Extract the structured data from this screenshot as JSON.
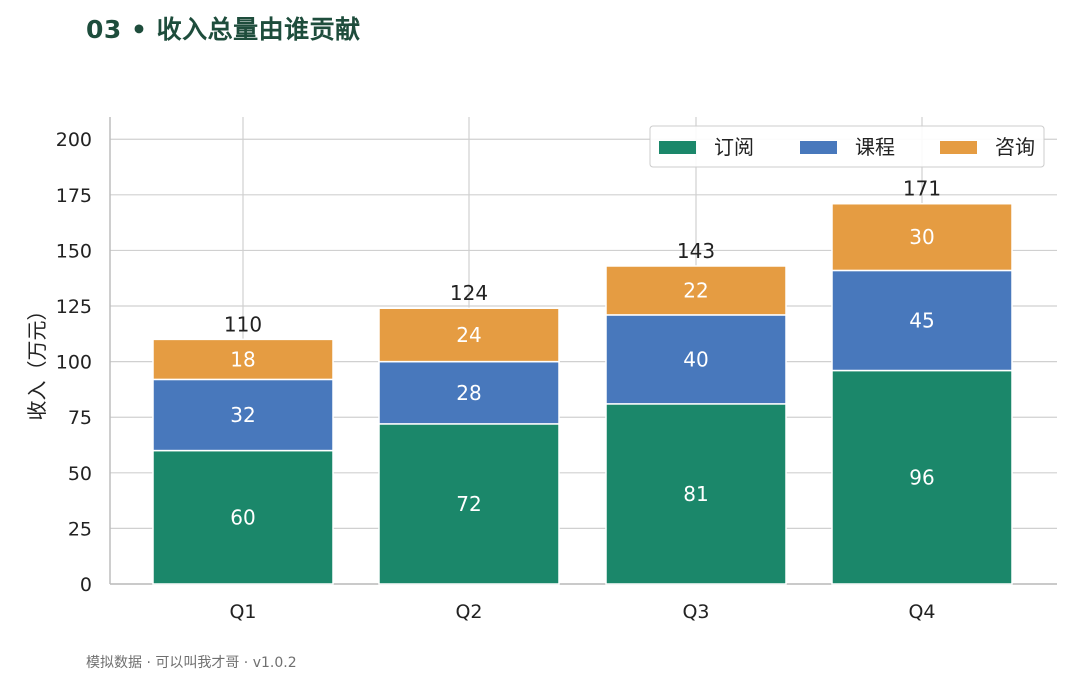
{
  "header": {
    "title": "03 • 收入总量由谁贡献"
  },
  "footer": {
    "note": "模拟数据 · 可以叫我才哥 · v1.0.2"
  },
  "chart_data": {
    "type": "bar",
    "stacked": true,
    "categories": [
      "Q1",
      "Q2",
      "Q3",
      "Q4"
    ],
    "series": [
      {
        "name": "订阅",
        "values": [
          60,
          72,
          81,
          96
        ],
        "color": "#1b876a"
      },
      {
        "name": "课程",
        "values": [
          32,
          28,
          40,
          45
        ],
        "color": "#4878bc"
      },
      {
        "name": "咨询",
        "values": [
          18,
          24,
          22,
          30
        ],
        "color": "#e59c42"
      }
    ],
    "totals": [
      110,
      124,
      143,
      171
    ],
    "ylabel": "收入（万元）",
    "ylim": [
      0,
      210
    ],
    "yticks": [
      0,
      25,
      50,
      75,
      100,
      125,
      150,
      175,
      200
    ],
    "grid": true,
    "legend_position": "top-right"
  }
}
